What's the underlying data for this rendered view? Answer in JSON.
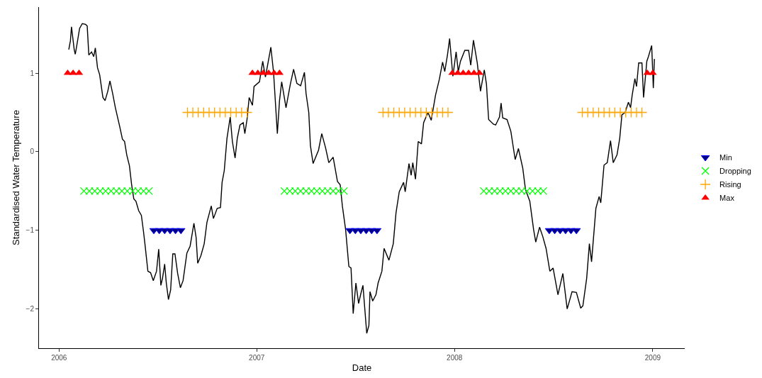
{
  "chart_data": {
    "type": "line",
    "xlabel": "Date",
    "ylabel": "Standardised Water Temperature",
    "xlim": [
      "2005-11-25",
      "2009-03-01"
    ],
    "ylim": [
      -2.5,
      1.84
    ],
    "xticks": [
      {
        "value": "2006-01-01",
        "label": "2006"
      },
      {
        "value": "2007-01-01",
        "label": "2007"
      },
      {
        "value": "2008-01-01",
        "label": "2008"
      },
      {
        "value": "2009-01-01",
        "label": "2009"
      }
    ],
    "yticks": [
      {
        "value": -2,
        "label": "−2"
      },
      {
        "value": -1,
        "label": "−1"
      },
      0,
      1
    ],
    "legend": "right",
    "series": [
      {
        "color": "#000000",
        "marker": "none",
        "line_style": "solid",
        "x": [
          "2006-01-19",
          "2006-01-22",
          "2006-01-24",
          "2006-01-29",
          "2006-01-31",
          "2006-02-03",
          "2006-02-08",
          "2006-02-13",
          "2006-02-19",
          "2006-02-22",
          "2006-02-25",
          "2006-03-02",
          "2006-03-06",
          "2006-03-09",
          "2006-03-13",
          "2006-03-17",
          "2006-03-23",
          "2006-03-27",
          "2006-04-01",
          "2006-04-05",
          "2006-04-10",
          "2006-04-15",
          "2006-04-23",
          "2006-04-28",
          "2006-05-02",
          "2006-05-06",
          "2006-05-11",
          "2006-05-15",
          "2006-05-19",
          "2006-05-23",
          "2006-05-28",
          "2006-06-02",
          "2006-06-06",
          "2006-06-09",
          "2006-06-14",
          "2006-06-19",
          "2006-06-24",
          "2006-06-30",
          "2006-07-04",
          "2006-07-08",
          "2006-07-11",
          "2006-07-15",
          "2006-07-18",
          "2006-07-22",
          "2006-07-26",
          "2006-07-30",
          "2006-08-03",
          "2006-08-08",
          "2006-08-13",
          "2006-08-18",
          "2006-08-25",
          "2006-08-31",
          "2006-09-07",
          "2006-09-11",
          "2006-09-14",
          "2006-09-20",
          "2006-09-26",
          "2006-10-01",
          "2006-10-09",
          "2006-10-13",
          "2006-10-20",
          "2006-10-26",
          "2006-10-29",
          "2006-11-02",
          "2006-11-07",
          "2006-11-13",
          "2006-11-17",
          "2006-11-22",
          "2006-11-26",
          "2006-12-01",
          "2006-12-07",
          "2006-12-10",
          "2006-12-14",
          "2006-12-18",
          "2006-12-24",
          "2006-12-27",
          "2007-01-06",
          "2007-01-12",
          "2007-01-17",
          "2007-01-27",
          "2007-02-01",
          "2007-02-08",
          "2007-02-12",
          "2007-02-16",
          "2007-02-24",
          "2007-03-04",
          "2007-03-10",
          "2007-03-16",
          "2007-03-23",
          "2007-03-30",
          "2007-04-02",
          "2007-04-07",
          "2007-04-10",
          "2007-04-15",
          "2007-04-25",
          "2007-05-01",
          "2007-05-08",
          "2007-05-14",
          "2007-05-22",
          "2007-05-30",
          "2007-06-04",
          "2007-06-08",
          "2007-06-14",
          "2007-06-20",
          "2007-06-24",
          "2007-06-28",
          "2007-07-03",
          "2007-07-08",
          "2007-07-12",
          "2007-07-16",
          "2007-07-23",
          "2007-07-27",
          "2007-07-29",
          "2007-08-03",
          "2007-08-09",
          "2007-08-13",
          "2007-08-20",
          "2007-08-24",
          "2007-09-02",
          "2007-09-10",
          "2007-09-15",
          "2007-09-21",
          "2007-09-29",
          "2007-10-02",
          "2007-10-09",
          "2007-10-13",
          "2007-10-16",
          "2007-10-21",
          "2007-10-26",
          "2007-11-01",
          "2007-11-05",
          "2007-11-13",
          "2007-11-19",
          "2007-11-27",
          "2007-12-04",
          "2007-12-10",
          "2007-12-14",
          "2007-12-19",
          "2007-12-23",
          "2007-12-29",
          "2008-01-04",
          "2008-01-08",
          "2008-01-12",
          "2008-01-20",
          "2008-01-27",
          "2008-01-31",
          "2008-02-05",
          "2008-02-12",
          "2008-02-18",
          "2008-02-25",
          "2008-02-29",
          "2008-03-04",
          "2008-03-13",
          "2008-03-17",
          "2008-03-24",
          "2008-03-27",
          "2008-03-30",
          "2008-04-07",
          "2008-04-14",
          "2008-04-22",
          "2008-04-28",
          "2008-05-06",
          "2008-05-11",
          "2008-05-19",
          "2008-05-26",
          "2008-05-30",
          "2008-06-06",
          "2008-06-12",
          "2008-06-18",
          "2008-06-25",
          "2008-07-01",
          "2008-07-10",
          "2008-07-19",
          "2008-07-27",
          "2008-08-05",
          "2008-08-13",
          "2008-08-21",
          "2008-08-25",
          "2008-09-01",
          "2008-09-06",
          "2008-09-10",
          "2008-09-18",
          "2008-09-24",
          "2008-09-27",
          "2008-10-03",
          "2008-10-09",
          "2008-10-15",
          "2008-10-20",
          "2008-10-27",
          "2008-11-01",
          "2008-11-05",
          "2008-11-11",
          "2008-11-17",
          "2008-11-21",
          "2008-11-24",
          "2008-11-29",
          "2008-12-02",
          "2008-12-06",
          "2008-12-12",
          "2008-12-15",
          "2008-12-21",
          "2008-12-24",
          "2008-12-30",
          "2009-01-02",
          "2009-01-04"
        ],
        "values": [
          1.3,
          1.41,
          1.59,
          1.3,
          1.24,
          1.36,
          1.57,
          1.63,
          1.62,
          1.6,
          1.23,
          1.27,
          1.21,
          1.32,
          1.07,
          0.98,
          0.69,
          0.65,
          0.77,
          0.9,
          0.74,
          0.56,
          0.32,
          0.16,
          0.13,
          -0.04,
          -0.18,
          -0.42,
          -0.6,
          -0.63,
          -0.75,
          -0.81,
          -1.02,
          -1.2,
          -1.52,
          -1.54,
          -1.64,
          -1.52,
          -1.24,
          -1.7,
          -1.61,
          -1.43,
          -1.67,
          -1.88,
          -1.76,
          -1.3,
          -1.3,
          -1.55,
          -1.73,
          -1.64,
          -1.29,
          -1.2,
          -0.91,
          -1.09,
          -1.42,
          -1.32,
          -1.17,
          -0.9,
          -0.69,
          -0.85,
          -0.72,
          -0.71,
          -0.39,
          -0.24,
          0.17,
          0.44,
          0.13,
          -0.08,
          0.17,
          0.34,
          0.37,
          0.23,
          0.41,
          0.69,
          0.59,
          0.83,
          0.89,
          1.15,
          0.95,
          1.33,
          1.01,
          0.23,
          0.65,
          0.89,
          0.56,
          0.86,
          1.05,
          0.87,
          0.84,
          1.01,
          0.74,
          0.5,
          0.08,
          -0.15,
          0.02,
          0.23,
          0.05,
          -0.14,
          -0.07,
          -0.38,
          -0.42,
          -0.69,
          -0.99,
          -1.46,
          -1.48,
          -2.06,
          -1.67,
          -1.93,
          -1.81,
          -1.7,
          -2.31,
          -2.21,
          -1.78,
          -1.9,
          -1.82,
          -1.67,
          -1.52,
          -1.23,
          -1.38,
          -1.17,
          -0.78,
          -0.51,
          -0.39,
          -0.51,
          -0.15,
          -0.3,
          -0.14,
          -0.35,
          0.13,
          0.1,
          0.37,
          0.5,
          0.4,
          0.72,
          0.92,
          1.14,
          1.02,
          1.23,
          1.44,
          0.96,
          1.27,
          1.02,
          1.15,
          1.29,
          1.29,
          1.1,
          1.42,
          1.13,
          0.77,
          1.04,
          0.86,
          0.41,
          0.35,
          0.34,
          0.44,
          0.62,
          0.43,
          0.41,
          0.26,
          -0.1,
          0.04,
          -0.21,
          -0.48,
          -0.63,
          -0.99,
          -1.15,
          -0.96,
          -1.08,
          -1.23,
          -1.52,
          -1.48,
          -1.82,
          -1.55,
          -2.0,
          -1.78,
          -1.79,
          -1.99,
          -1.96,
          -1.61,
          -1.17,
          -1.4,
          -0.72,
          -0.57,
          -0.65,
          -0.17,
          -0.14,
          0.14,
          -0.14,
          -0.04,
          0.17,
          0.47,
          0.5,
          0.63,
          0.56,
          0.72,
          0.93,
          0.83,
          1.13,
          1.13,
          0.69,
          1.15,
          1.21,
          1.35,
          0.81,
          1.18
        ]
      },
      {
        "type": "scatter",
        "name": "Min",
        "color": "#000080",
        "marker": "triangle-down",
        "x": [
          "2006-06-25",
          "2006-07-05",
          "2006-07-15",
          "2006-07-25",
          "2006-08-04",
          "2006-08-14",
          "2007-06-22",
          "2007-07-02",
          "2007-07-12",
          "2007-07-22",
          "2007-08-01",
          "2007-08-11",
          "2008-06-24",
          "2008-07-04",
          "2008-07-14",
          "2008-07-24",
          "2008-08-03",
          "2008-08-13"
        ],
        "values": [
          -1,
          -1,
          -1,
          -1,
          -1,
          -1,
          -1,
          -1,
          -1,
          -1,
          -1,
          -1,
          -1,
          -1,
          -1,
          -1,
          -1,
          -1
        ]
      },
      {
        "type": "scatter",
        "name": "Dropping",
        "color": "#00ff00",
        "marker": "cross",
        "x": [
          "2006-02-16",
          "2006-02-26",
          "2006-03-08",
          "2006-03-18",
          "2006-03-28",
          "2006-04-07",
          "2006-04-17",
          "2006-04-27",
          "2006-05-07",
          "2006-05-17",
          "2006-05-27",
          "2006-06-06",
          "2006-06-16",
          "2007-02-21",
          "2007-03-03",
          "2007-03-13",
          "2007-03-23",
          "2007-04-02",
          "2007-04-12",
          "2007-04-22",
          "2007-05-02",
          "2007-05-12",
          "2007-05-22",
          "2007-06-01",
          "2007-06-11",
          "2008-02-24",
          "2008-03-05",
          "2008-03-15",
          "2008-03-25",
          "2008-04-04",
          "2008-04-14",
          "2008-04-24",
          "2008-05-04",
          "2008-05-14",
          "2008-05-24",
          "2008-06-03",
          "2008-06-13"
        ],
        "values": [
          -0.5,
          -0.5,
          -0.5,
          -0.5,
          -0.5,
          -0.5,
          -0.5,
          -0.5,
          -0.5,
          -0.5,
          -0.5,
          -0.5,
          -0.5,
          -0.5,
          -0.5,
          -0.5,
          -0.5,
          -0.5,
          -0.5,
          -0.5,
          -0.5,
          -0.5,
          -0.5,
          -0.5,
          -0.5,
          -0.5,
          -0.5,
          -0.5,
          -0.5,
          -0.5,
          -0.5,
          -0.5,
          -0.5,
          -0.5,
          -0.5,
          -0.5,
          -0.5
        ]
      },
      {
        "type": "scatter",
        "name": "Rising",
        "color": "#ffa500",
        "marker": "plus",
        "x": [
          "2006-08-26",
          "2006-09-05",
          "2006-09-15",
          "2006-09-25",
          "2006-10-05",
          "2006-10-15",
          "2006-10-25",
          "2006-11-04",
          "2006-11-14",
          "2006-11-24",
          "2006-12-04",
          "2006-12-14",
          "2007-08-22",
          "2007-09-01",
          "2007-09-11",
          "2007-09-21",
          "2007-10-01",
          "2007-10-11",
          "2007-10-21",
          "2007-10-31",
          "2007-11-10",
          "2007-11-20",
          "2007-11-30",
          "2007-12-10",
          "2007-12-20",
          "2008-08-24",
          "2008-09-03",
          "2008-09-13",
          "2008-09-23",
          "2008-10-03",
          "2008-10-13",
          "2008-10-23",
          "2008-11-02",
          "2008-11-12",
          "2008-11-22",
          "2008-12-02",
          "2008-12-12"
        ],
        "values": [
          0.5,
          0.5,
          0.5,
          0.5,
          0.5,
          0.5,
          0.5,
          0.5,
          0.5,
          0.5,
          0.5,
          0.5,
          0.5,
          0.5,
          0.5,
          0.5,
          0.5,
          0.5,
          0.5,
          0.5,
          0.5,
          0.5,
          0.5,
          0.5,
          0.5,
          0.5,
          0.5,
          0.5,
          0.5,
          0.5,
          0.5,
          0.5,
          0.5,
          0.5,
          0.5,
          0.5,
          0.5
        ]
      },
      {
        "type": "scatter",
        "name": "Max",
        "color": "#ff0000",
        "marker": "triangle",
        "x": [
          "2006-01-17",
          "2006-01-27",
          "2006-02-07",
          "2006-12-24",
          "2007-01-03",
          "2007-01-13",
          "2007-01-23",
          "2007-02-02",
          "2007-02-12",
          "2007-12-28",
          "2008-01-07",
          "2008-01-17",
          "2008-01-27",
          "2008-02-06",
          "2008-02-16",
          "2008-12-22",
          "2009-01-01"
        ],
        "values": [
          1,
          1,
          1,
          1,
          1,
          1,
          1,
          1,
          1,
          1,
          1,
          1,
          1,
          1,
          1,
          1,
          1
        ]
      }
    ]
  }
}
